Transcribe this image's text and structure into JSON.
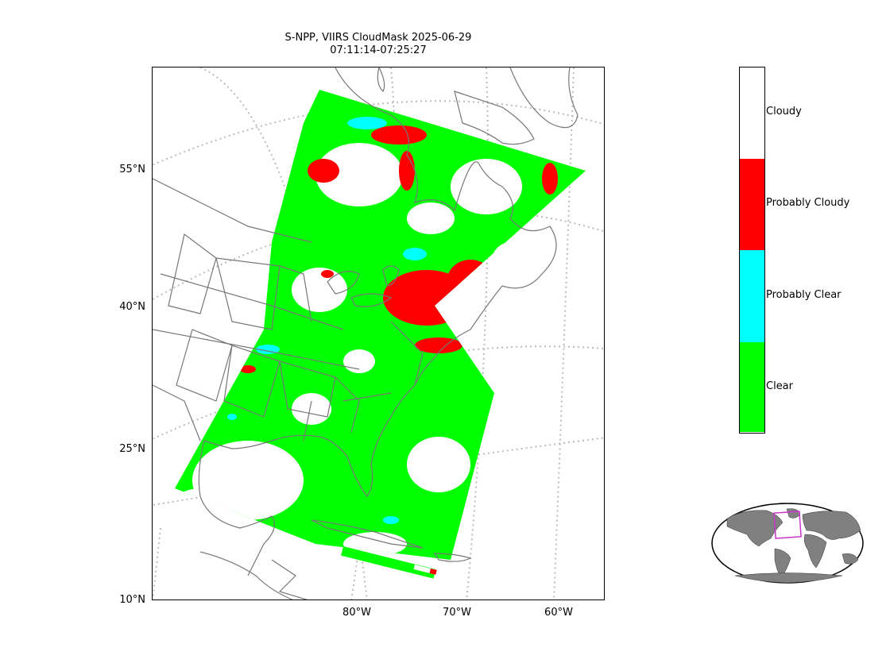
{
  "title_line1": "S-NPP, VIIRS CloudMask 2025-06-29",
  "title_line2": "07:11:14-07:25:27",
  "lat_labels": [
    "55°N",
    "40°N",
    "25°N",
    "10°N"
  ],
  "lon_labels": [
    "80°W",
    "70°W",
    "60°W"
  ],
  "legend": {
    "categories": [
      {
        "label": "Cloudy",
        "color": "#ffffff"
      },
      {
        "label": "Probably Cloudy",
        "color": "#ff0000"
      },
      {
        "label": "Probably Clear",
        "color": "#00ffff"
      },
      {
        "label": "Clear",
        "color": "#00ff00"
      }
    ]
  },
  "colors": {
    "coastline": "#777777",
    "gridline": "#bbbbbb",
    "inset_land": "#808080",
    "inset_box": "#cc33cc"
  }
}
